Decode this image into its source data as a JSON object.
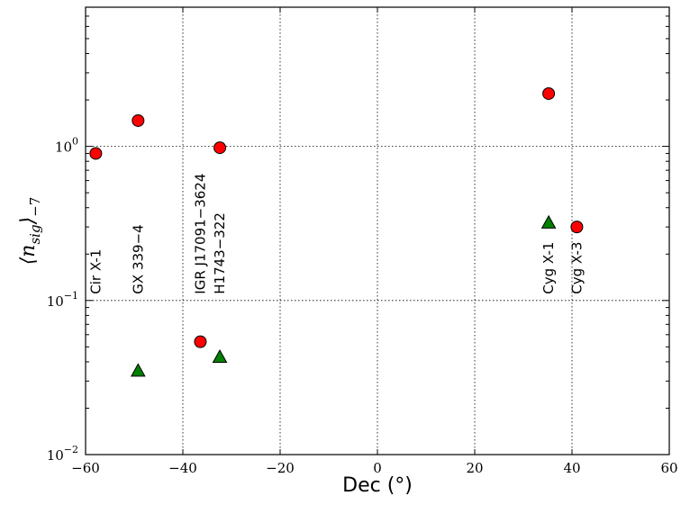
{
  "chart_data": {
    "type": "scatter",
    "xlabel": "Dec (°)",
    "ylabel": "⟨n",
    "ylabel_sub": "sig",
    "ylabel_rangle": "⟩",
    "ylabel_subscript": "−7",
    "xlim": [
      -60,
      60
    ],
    "ylim": [
      0.01,
      8
    ],
    "yscale": "log",
    "grid": true,
    "x_ticks": [
      -60,
      -40,
      -20,
      0,
      20,
      40,
      60
    ],
    "x_tick_labels": [
      "−60",
      "−40",
      "−20",
      "0",
      "20",
      "40",
      "60"
    ],
    "y_ticks": [
      0.01,
      0.1,
      1
    ],
    "y_tick_labels": [
      {
        "base": "10",
        "exp": "−2"
      },
      {
        "base": "10",
        "exp": "−1"
      },
      {
        "base": "10",
        "exp": "0"
      }
    ],
    "series": [
      {
        "marker": "circle",
        "color": "#ff0000",
        "points": [
          {
            "x": -57.9,
            "y": 0.9
          },
          {
            "x": -49.2,
            "y": 1.47
          },
          {
            "x": -36.4,
            "y": 0.054
          },
          {
            "x": -32.4,
            "y": 0.98
          },
          {
            "x": 35.2,
            "y": 2.2
          },
          {
            "x": 41.0,
            "y": 0.3
          }
        ]
      },
      {
        "marker": "triangle",
        "color": "#008000",
        "points": [
          {
            "x": -49.2,
            "y": 0.035
          },
          {
            "x": -32.4,
            "y": 0.043
          },
          {
            "x": 35.2,
            "y": 0.32
          }
        ]
      }
    ],
    "annotations": [
      {
        "text": "Cir X-1",
        "x": -57.9,
        "y": 0.11
      },
      {
        "text": "GX 339−4",
        "x": -49.2,
        "y": 0.11
      },
      {
        "text": "IGR J17091−3624",
        "x": -36.4,
        "y": 0.11
      },
      {
        "text": "H1743−322",
        "x": -32.4,
        "y": 0.11
      },
      {
        "text": "Cyg X-1",
        "x": 35.2,
        "y": 0.11
      },
      {
        "text": "Cyg X-3",
        "x": 41.0,
        "y": 0.11
      }
    ]
  }
}
